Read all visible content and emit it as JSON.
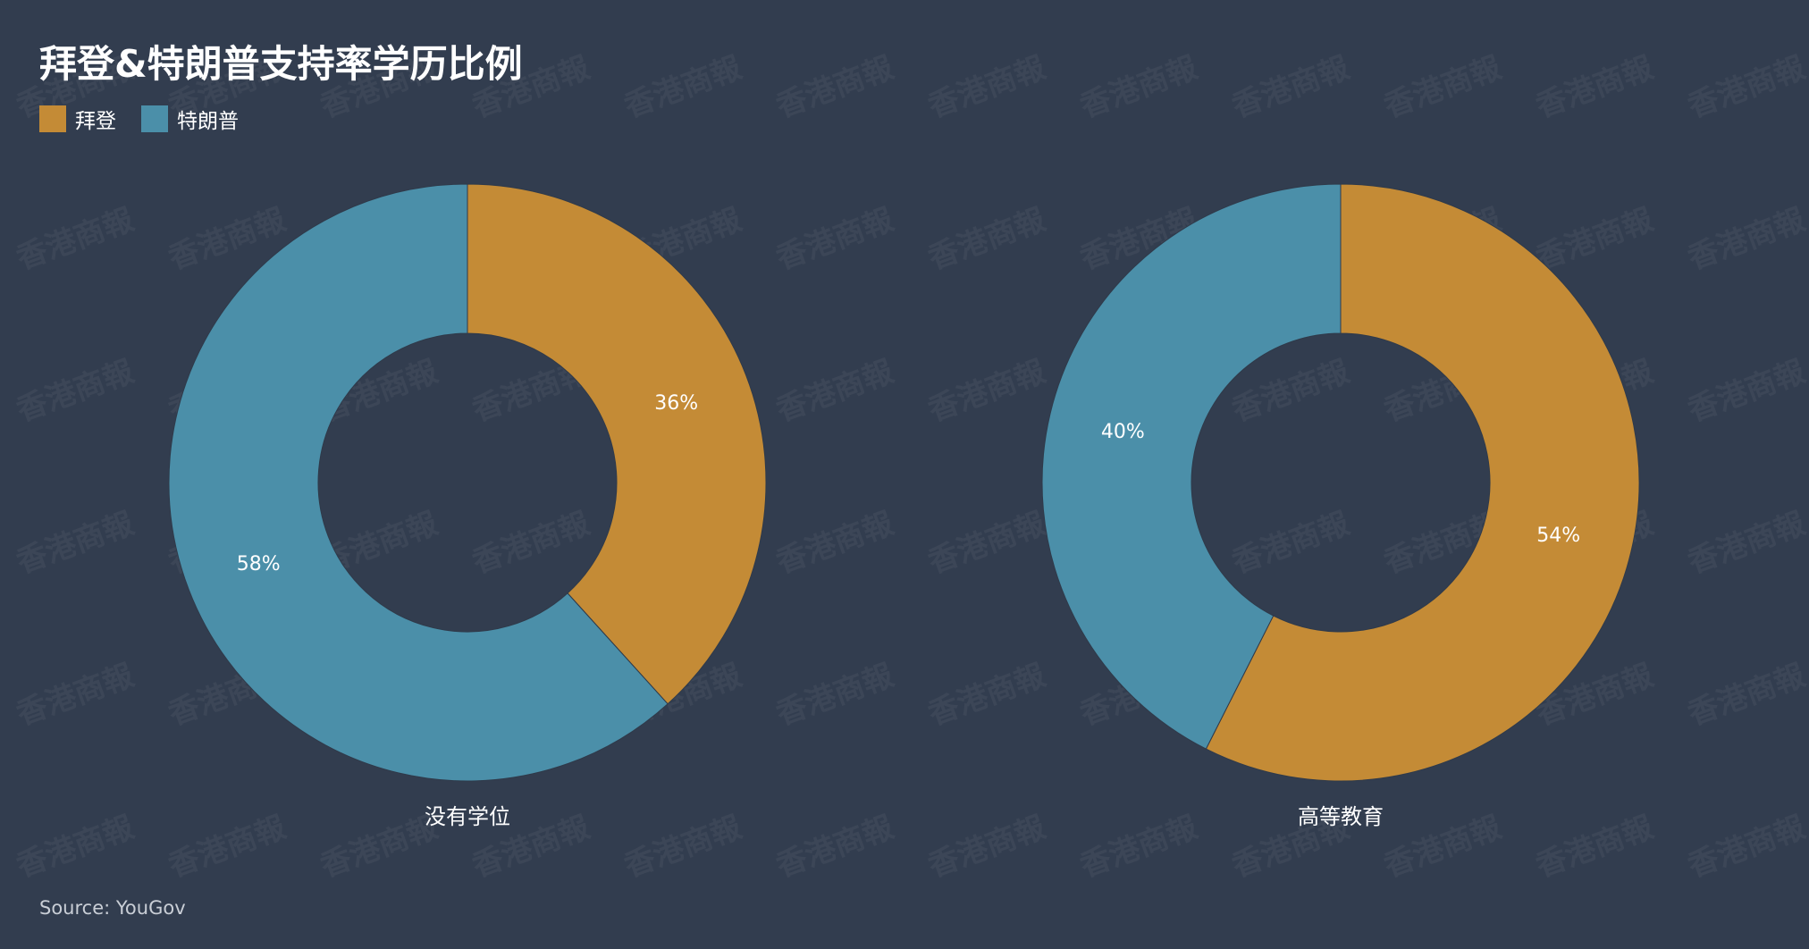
{
  "title": "拜登&特朗普支持率学历比例",
  "legend": [
    {
      "label": "拜登",
      "color": "#c48b36"
    },
    {
      "label": "特朗普",
      "color": "#4b8fa9"
    }
  ],
  "watermark": "香港商報",
  "source": "Source: YouGov",
  "chart_data": [
    {
      "type": "pie",
      "donut": true,
      "category": "没有学位",
      "slices": [
        {
          "name": "拜登",
          "value": 36,
          "label": "36%",
          "color": "#c48b36"
        },
        {
          "name": "特朗普",
          "value": 58,
          "label": "58%",
          "color": "#4b8fa9"
        }
      ]
    },
    {
      "type": "pie",
      "donut": true,
      "category": "高等教育",
      "slices": [
        {
          "name": "拜登",
          "value": 54,
          "label": "54%",
          "color": "#c48b36"
        },
        {
          "name": "特朗普",
          "value": 40,
          "label": "40%",
          "color": "#4b8fa9"
        }
      ]
    }
  ]
}
